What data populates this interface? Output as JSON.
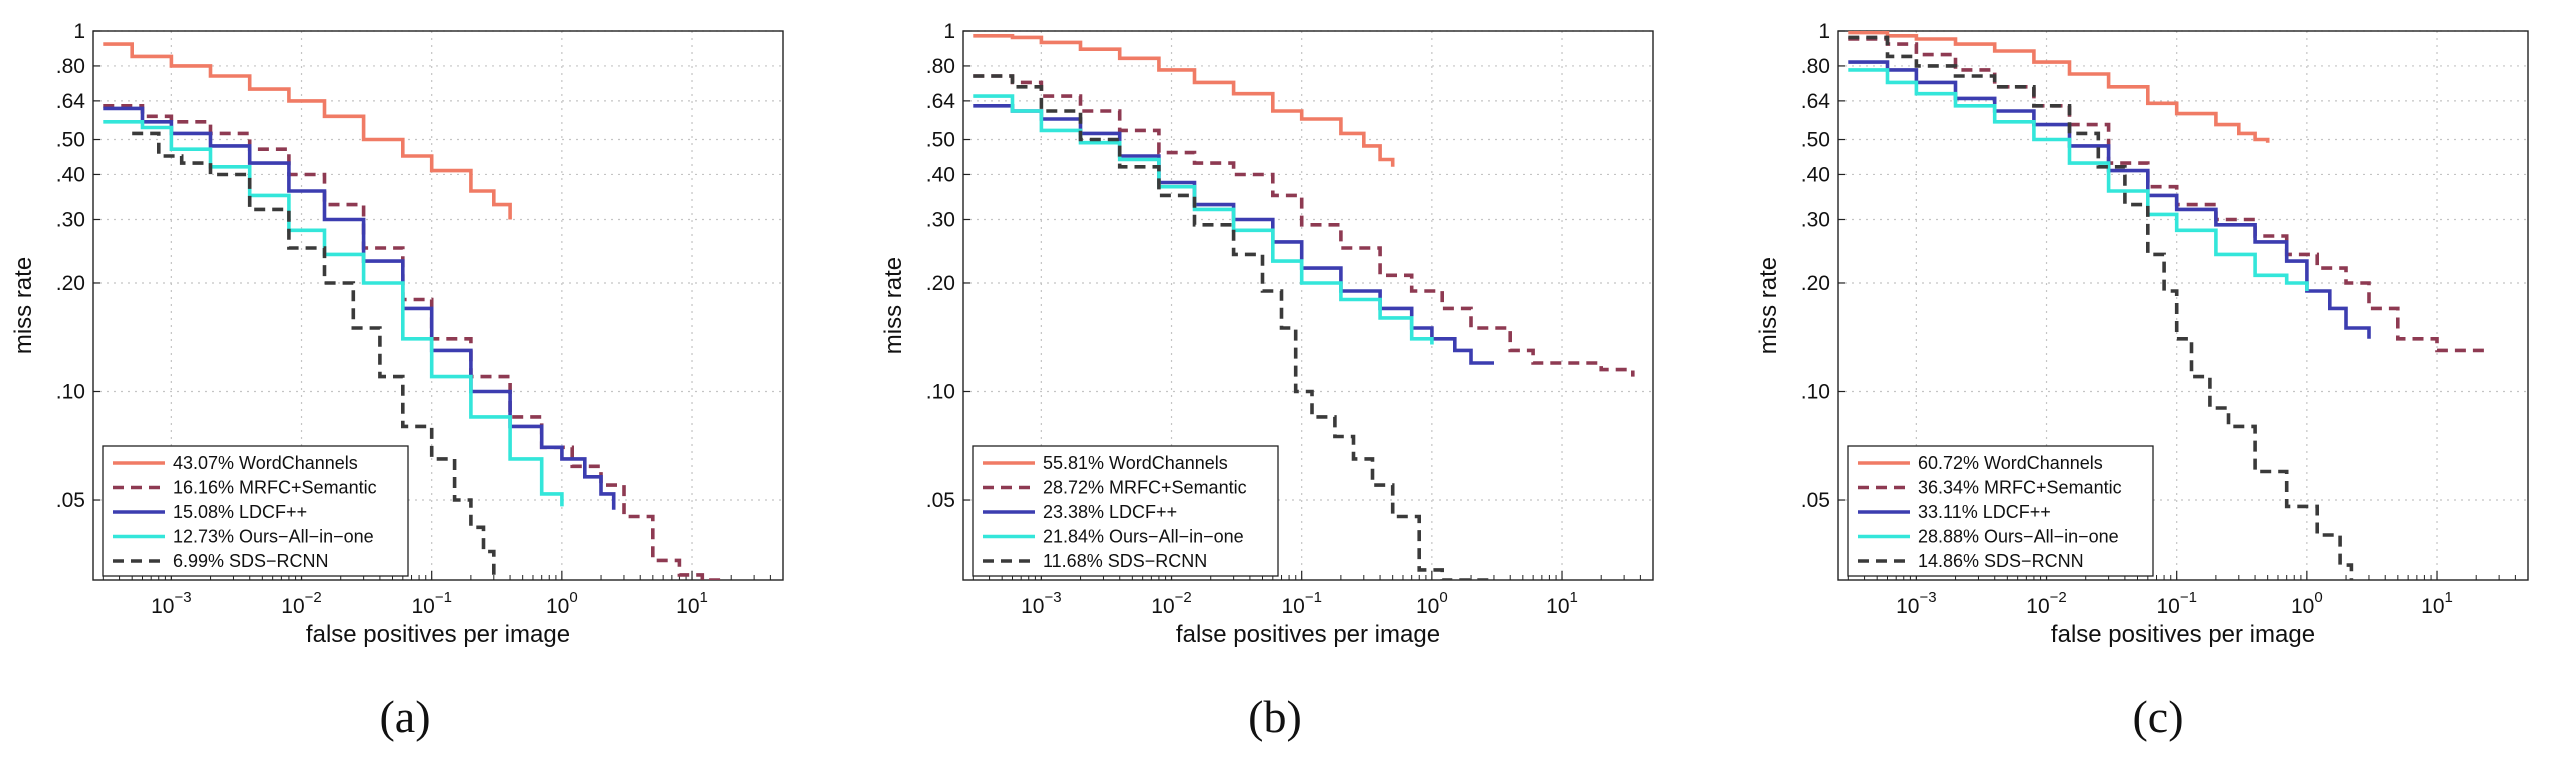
{
  "chart_data": [
    {
      "type": "line",
      "panel": "a",
      "caption": "(a)",
      "xlabel": "false positives per image",
      "ylabel": "miss rate",
      "xscale": "log",
      "yscale": "log",
      "xlim": [
        0.00025,
        50
      ],
      "ylim": [
        0.03,
        1
      ],
      "xticks": [
        {
          "v": 0.001,
          "b": "10",
          "e": "−3"
        },
        {
          "v": 0.01,
          "b": "10",
          "e": "−2"
        },
        {
          "v": 0.1,
          "b": "10",
          "e": "−1"
        },
        {
          "v": 1,
          "b": "10",
          "e": "0"
        },
        {
          "v": 10,
          "b": "10",
          "e": "1"
        }
      ],
      "yticks": [
        {
          "v": 1,
          "label": "1"
        },
        {
          "v": 0.8,
          "label": ".80"
        },
        {
          "v": 0.64,
          "label": ".64"
        },
        {
          "v": 0.5,
          "label": ".50"
        },
        {
          "v": 0.4,
          "label": ".40"
        },
        {
          "v": 0.3,
          "label": ".30"
        },
        {
          "v": 0.2,
          "label": ".20"
        },
        {
          "v": 0.1,
          "label": ".10"
        },
        {
          "v": 0.05,
          "label": ".05"
        }
      ],
      "grid": true,
      "legend_position": "bottom-left",
      "series": [
        {
          "name": "43.07% WordChannels",
          "color": "#f07b65",
          "style": "solid",
          "x": [
            0.0003,
            0.0005,
            0.001,
            0.002,
            0.004,
            0.008,
            0.015,
            0.03,
            0.06,
            0.1,
            0.2,
            0.3,
            0.4
          ],
          "y": [
            0.92,
            0.85,
            0.8,
            0.75,
            0.69,
            0.64,
            0.58,
            0.5,
            0.45,
            0.41,
            0.36,
            0.33,
            0.3
          ]
        },
        {
          "name": "16.16% MRFC+Semantic",
          "color": "#8e3a52",
          "style": "dashed",
          "x": [
            0.0003,
            0.0006,
            0.001,
            0.002,
            0.004,
            0.008,
            0.015,
            0.03,
            0.06,
            0.1,
            0.2,
            0.4,
            0.7,
            1.2,
            2,
            3,
            5,
            8,
            12,
            18
          ],
          "y": [
            0.62,
            0.58,
            0.56,
            0.52,
            0.47,
            0.4,
            0.33,
            0.25,
            0.18,
            0.14,
            0.11,
            0.085,
            0.07,
            0.062,
            0.055,
            0.045,
            0.034,
            0.031,
            0.03,
            0.03
          ]
        },
        {
          "name": "15.08% LDCF++",
          "color": "#3c3db0",
          "style": "solid",
          "x": [
            0.0003,
            0.0006,
            0.001,
            0.002,
            0.004,
            0.008,
            0.015,
            0.03,
            0.06,
            0.1,
            0.2,
            0.4,
            0.7,
            1.0,
            1.5,
            2.0,
            2.5
          ],
          "y": [
            0.61,
            0.56,
            0.52,
            0.48,
            0.43,
            0.36,
            0.3,
            0.23,
            0.17,
            0.13,
            0.1,
            0.08,
            0.07,
            0.065,
            0.058,
            0.052,
            0.047
          ]
        },
        {
          "name": "12.73% Ours−All−in−one",
          "color": "#33e6da",
          "style": "solid",
          "x": [
            0.0003,
            0.0006,
            0.001,
            0.002,
            0.004,
            0.008,
            0.015,
            0.03,
            0.06,
            0.1,
            0.2,
            0.4,
            0.7,
            1.0
          ],
          "y": [
            0.56,
            0.54,
            0.47,
            0.42,
            0.35,
            0.28,
            0.24,
            0.2,
            0.14,
            0.11,
            0.085,
            0.065,
            0.052,
            0.048
          ]
        },
        {
          "name": "6.99% SDS−RCNN",
          "color": "#3a3a3a",
          "style": "dashed",
          "x": [
            0.0005,
            0.0008,
            0.0012,
            0.002,
            0.004,
            0.008,
            0.015,
            0.025,
            0.04,
            0.06,
            0.1,
            0.15,
            0.2,
            0.25,
            0.3
          ],
          "y": [
            0.52,
            0.45,
            0.43,
            0.4,
            0.32,
            0.25,
            0.2,
            0.15,
            0.11,
            0.08,
            0.065,
            0.05,
            0.042,
            0.036,
            0.03
          ]
        }
      ]
    },
    {
      "type": "line",
      "panel": "b",
      "caption": "(b)",
      "xlabel": "false positives per image",
      "ylabel": "miss rate",
      "xscale": "log",
      "yscale": "log",
      "xlim": [
        0.00025,
        50
      ],
      "ylim": [
        0.03,
        1
      ],
      "xticks": [
        {
          "v": 0.001,
          "b": "10",
          "e": "−3"
        },
        {
          "v": 0.01,
          "b": "10",
          "e": "−2"
        },
        {
          "v": 0.1,
          "b": "10",
          "e": "−1"
        },
        {
          "v": 1,
          "b": "10",
          "e": "0"
        },
        {
          "v": 10,
          "b": "10",
          "e": "1"
        }
      ],
      "yticks": [
        {
          "v": 1,
          "label": "1"
        },
        {
          "v": 0.8,
          "label": ".80"
        },
        {
          "v": 0.64,
          "label": ".64"
        },
        {
          "v": 0.5,
          "label": ".50"
        },
        {
          "v": 0.4,
          "label": ".40"
        },
        {
          "v": 0.3,
          "label": ".30"
        },
        {
          "v": 0.2,
          "label": ".20"
        },
        {
          "v": 0.1,
          "label": ".10"
        },
        {
          "v": 0.05,
          "label": ".05"
        }
      ],
      "grid": true,
      "legend_position": "bottom-left",
      "series": [
        {
          "name": "55.81% WordChannels",
          "color": "#f07b65",
          "style": "solid",
          "x": [
            0.0003,
            0.0006,
            0.001,
            0.002,
            0.004,
            0.008,
            0.015,
            0.03,
            0.06,
            0.1,
            0.2,
            0.3,
            0.4,
            0.5
          ],
          "y": [
            0.97,
            0.96,
            0.93,
            0.89,
            0.84,
            0.78,
            0.72,
            0.67,
            0.6,
            0.57,
            0.52,
            0.48,
            0.44,
            0.42
          ]
        },
        {
          "name": "28.72% MRFC+Semantic",
          "color": "#8e3a52",
          "style": "dashed",
          "x": [
            0.0003,
            0.0006,
            0.001,
            0.002,
            0.004,
            0.008,
            0.015,
            0.03,
            0.06,
            0.1,
            0.2,
            0.4,
            0.7,
            1.2,
            2,
            4,
            6,
            10,
            20,
            35
          ],
          "y": [
            0.75,
            0.72,
            0.66,
            0.6,
            0.53,
            0.46,
            0.43,
            0.4,
            0.35,
            0.29,
            0.25,
            0.21,
            0.19,
            0.17,
            0.15,
            0.13,
            0.12,
            0.12,
            0.115,
            0.11
          ]
        },
        {
          "name": "23.38% LDCF++",
          "color": "#3c3db0",
          "style": "solid",
          "x": [
            0.0003,
            0.0006,
            0.001,
            0.002,
            0.004,
            0.008,
            0.015,
            0.03,
            0.06,
            0.1,
            0.2,
            0.4,
            0.7,
            1.0,
            1.5,
            2.0,
            3.0
          ],
          "y": [
            0.62,
            0.6,
            0.57,
            0.52,
            0.45,
            0.38,
            0.33,
            0.3,
            0.26,
            0.22,
            0.19,
            0.17,
            0.15,
            0.14,
            0.13,
            0.12,
            0.12
          ]
        },
        {
          "name": "21.84% Ours−All−in−one",
          "color": "#33e6da",
          "style": "solid",
          "x": [
            0.0003,
            0.0006,
            0.001,
            0.002,
            0.004,
            0.008,
            0.015,
            0.03,
            0.06,
            0.1,
            0.2,
            0.4,
            0.7,
            1.0
          ],
          "y": [
            0.66,
            0.6,
            0.53,
            0.49,
            0.44,
            0.37,
            0.32,
            0.28,
            0.23,
            0.2,
            0.18,
            0.16,
            0.14,
            0.135
          ]
        },
        {
          "name": "11.68% SDS−RCNN",
          "color": "#3a3a3a",
          "style": "dashed",
          "x": [
            0.0003,
            0.0006,
            0.001,
            0.002,
            0.004,
            0.008,
            0.015,
            0.03,
            0.05,
            0.07,
            0.09,
            0.12,
            0.18,
            0.25,
            0.35,
            0.5,
            0.8,
            1.2,
            2.0,
            3.0
          ],
          "y": [
            0.75,
            0.7,
            0.6,
            0.5,
            0.42,
            0.35,
            0.29,
            0.24,
            0.19,
            0.15,
            0.1,
            0.085,
            0.075,
            0.065,
            0.055,
            0.045,
            0.032,
            0.03,
            0.03,
            0.03
          ]
        }
      ]
    },
    {
      "type": "line",
      "panel": "c",
      "caption": "(c)",
      "xlabel": "false positives per image",
      "ylabel": "miss rate",
      "xscale": "log",
      "yscale": "log",
      "xlim": [
        0.00025,
        50
      ],
      "ylim": [
        0.03,
        1
      ],
      "xticks": [
        {
          "v": 0.001,
          "b": "10",
          "e": "−3"
        },
        {
          "v": 0.01,
          "b": "10",
          "e": "−2"
        },
        {
          "v": 0.1,
          "b": "10",
          "e": "−1"
        },
        {
          "v": 1,
          "b": "10",
          "e": "0"
        },
        {
          "v": 10,
          "b": "10",
          "e": "1"
        }
      ],
      "yticks": [
        {
          "v": 1,
          "label": "1"
        },
        {
          "v": 0.8,
          "label": ".80"
        },
        {
          "v": 0.64,
          "label": ".64"
        },
        {
          "v": 0.5,
          "label": ".50"
        },
        {
          "v": 0.4,
          "label": ".40"
        },
        {
          "v": 0.3,
          "label": ".30"
        },
        {
          "v": 0.2,
          "label": ".20"
        },
        {
          "v": 0.1,
          "label": ".10"
        },
        {
          "v": 0.05,
          "label": ".05"
        }
      ],
      "grid": true,
      "legend_position": "bottom-left",
      "series": [
        {
          "name": "60.72% WordChannels",
          "color": "#f07b65",
          "style": "solid",
          "x": [
            0.0003,
            0.0006,
            0.001,
            0.002,
            0.004,
            0.008,
            0.015,
            0.03,
            0.06,
            0.1,
            0.2,
            0.3,
            0.4,
            0.5
          ],
          "y": [
            0.99,
            0.97,
            0.95,
            0.92,
            0.88,
            0.82,
            0.76,
            0.7,
            0.63,
            0.59,
            0.55,
            0.52,
            0.5,
            0.49
          ]
        },
        {
          "name": "36.34% MRFC+Semantic",
          "color": "#8e3a52",
          "style": "dashed",
          "x": [
            0.0003,
            0.0006,
            0.001,
            0.002,
            0.004,
            0.008,
            0.015,
            0.03,
            0.06,
            0.1,
            0.2,
            0.4,
            0.7,
            1.2,
            2.0,
            3.0,
            5.0,
            10,
            20,
            25
          ],
          "y": [
            0.95,
            0.92,
            0.86,
            0.78,
            0.7,
            0.62,
            0.55,
            0.43,
            0.37,
            0.33,
            0.3,
            0.27,
            0.24,
            0.22,
            0.2,
            0.17,
            0.14,
            0.13,
            0.13,
            0.13
          ]
        },
        {
          "name": "33.11% LDCF++",
          "color": "#3c3db0",
          "style": "solid",
          "x": [
            0.0003,
            0.0006,
            0.001,
            0.002,
            0.004,
            0.008,
            0.015,
            0.03,
            0.06,
            0.1,
            0.2,
            0.4,
            0.7,
            1.0,
            1.5,
            2.0,
            3.0
          ],
          "y": [
            0.82,
            0.78,
            0.72,
            0.65,
            0.6,
            0.55,
            0.48,
            0.41,
            0.35,
            0.32,
            0.29,
            0.26,
            0.23,
            0.19,
            0.17,
            0.15,
            0.14
          ]
        },
        {
          "name": "28.88% Ours−All−in−one",
          "color": "#33e6da",
          "style": "solid",
          "x": [
            0.0003,
            0.0006,
            0.001,
            0.002,
            0.004,
            0.008,
            0.015,
            0.03,
            0.06,
            0.1,
            0.2,
            0.4,
            0.7,
            1.0
          ],
          "y": [
            0.78,
            0.72,
            0.67,
            0.62,
            0.56,
            0.5,
            0.43,
            0.36,
            0.31,
            0.28,
            0.24,
            0.21,
            0.2,
            0.19
          ]
        },
        {
          "name": "14.86% SDS−RCNN",
          "color": "#3a3a3a",
          "style": "dashed",
          "x": [
            0.0003,
            0.0006,
            0.001,
            0.002,
            0.004,
            0.008,
            0.015,
            0.025,
            0.04,
            0.06,
            0.08,
            0.1,
            0.13,
            0.18,
            0.25,
            0.4,
            0.7,
            1.2,
            1.8,
            2.2
          ],
          "y": [
            0.96,
            0.85,
            0.8,
            0.75,
            0.7,
            0.62,
            0.52,
            0.42,
            0.33,
            0.24,
            0.19,
            0.14,
            0.11,
            0.09,
            0.08,
            0.06,
            0.048,
            0.04,
            0.033,
            0.03
          ]
        }
      ]
    }
  ]
}
